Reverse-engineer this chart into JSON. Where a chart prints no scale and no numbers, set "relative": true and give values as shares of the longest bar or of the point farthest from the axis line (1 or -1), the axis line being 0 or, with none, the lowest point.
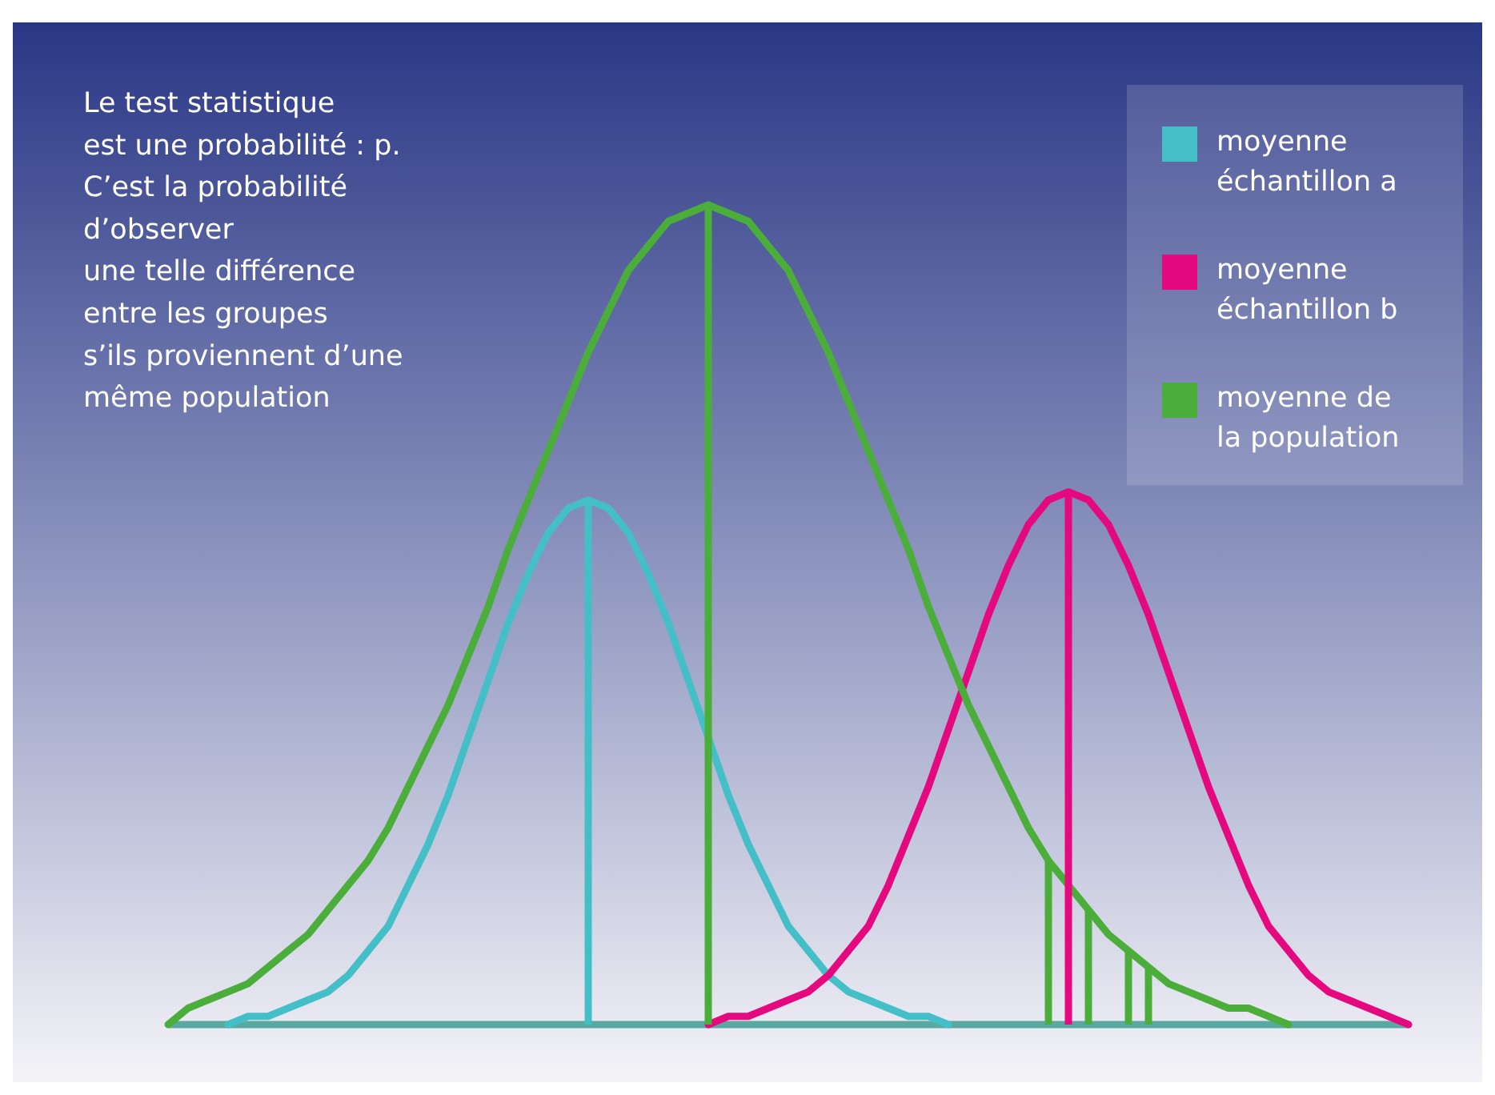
{
  "chart_data": {
    "type": "line",
    "relative": true,
    "legend": "top right",
    "annotations": [
      "Le test statistique\nest une probabilité : p.\nC’est la probabilité\nd’observer\nune telle différence\nentre les groupes\ns’ils proviennent d’une\nmême population"
    ],
    "categories": [
      null,
      null,
      null,
      null,
      null,
      null,
      null,
      null,
      null,
      null,
      null,
      null,
      null,
      null,
      null,
      null,
      null,
      null,
      null,
      null,
      null,
      null,
      null,
      null,
      null,
      null,
      null,
      null,
      null,
      null,
      null,
      null,
      null,
      null,
      null,
      null,
      null,
      null,
      null,
      null,
      null,
      null,
      null,
      null,
      null,
      null,
      null,
      null,
      null,
      null,
      null,
      null,
      null,
      null,
      null,
      null,
      null,
      null,
      null,
      null,
      null,
      null,
      null
    ],
    "series": [
      {
        "name": "moyenne échantillon a",
        "color": "#45bfc7",
        "values": [
          null,
          null,
          null,
          0,
          0.01,
          0.01,
          0.02,
          0.03,
          0.04,
          0.06,
          0.09,
          0.12,
          0.17,
          0.22,
          0.28,
          0.35,
          0.42,
          0.49,
          0.55,
          0.6,
          0.63,
          0.64,
          0.63,
          0.6,
          0.55,
          0.49,
          0.42,
          0.35,
          0.28,
          0.22,
          0.17,
          0.12,
          0.09,
          0.06,
          0.04,
          0.03,
          0.02,
          0.01,
          0.01,
          0,
          null,
          null,
          null,
          null,
          null,
          null,
          null,
          null,
          null,
          null,
          null,
          null,
          null,
          null,
          null,
          null,
          null,
          null,
          null,
          null,
          null,
          null,
          null
        ]
      },
      {
        "name": "moyenne échantillon b",
        "color": "#e5097f",
        "values": [
          null,
          null,
          null,
          null,
          null,
          null,
          null,
          null,
          null,
          null,
          null,
          null,
          null,
          null,
          null,
          null,
          null,
          null,
          null,
          null,
          null,
          null,
          null,
          null,
          null,
          null,
          null,
          0,
          0.01,
          0.01,
          0.02,
          0.03,
          0.04,
          0.06,
          0.09,
          0.12,
          0.17,
          0.23,
          0.29,
          0.36,
          0.43,
          0.5,
          0.56,
          0.61,
          0.64,
          0.65,
          0.64,
          0.61,
          0.56,
          0.5,
          0.43,
          0.36,
          0.29,
          0.23,
          0.17,
          0.12,
          0.09,
          0.06,
          0.04,
          0.03,
          0.02,
          0.01,
          0
        ]
      },
      {
        "name": "moyenne de la population",
        "color": "#4cae3a",
        "values": [
          0,
          0.02,
          0.03,
          0.04,
          0.05,
          0.07,
          0.09,
          0.11,
          0.14,
          0.17,
          0.2,
          0.24,
          0.29,
          0.34,
          0.39,
          0.45,
          0.51,
          0.58,
          0.64,
          0.7,
          0.76,
          0.82,
          0.87,
          0.92,
          0.95,
          0.98,
          0.99,
          1,
          0.99,
          0.98,
          0.95,
          0.92,
          0.87,
          0.82,
          0.76,
          0.7,
          0.64,
          0.58,
          0.51,
          0.45,
          0.39,
          0.34,
          0.29,
          0.24,
          0.2,
          0.17,
          0.14,
          0.11,
          0.09,
          0.07,
          0.05,
          0.04,
          0.03,
          0.02,
          0.02,
          0.01,
          0,
          null,
          null,
          null,
          null,
          null,
          null
        ]
      }
    ]
  }
}
